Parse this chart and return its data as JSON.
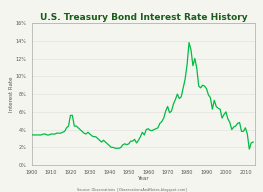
{
  "title": "U.S. Treasury Bond Interest Rate History",
  "xlabel": "Year",
  "ylabel": "Interest Rate",
  "source": "Source: Observations  [ObservationsAndNotes.blogspot.com]",
  "xlim": [
    1900,
    2015
  ],
  "ylim": [
    0,
    0.16
  ],
  "yticks": [
    0.0,
    0.02,
    0.04,
    0.06,
    0.08,
    0.1,
    0.12,
    0.14,
    0.16
  ],
  "ytick_labels": [
    "0%",
    "2%",
    "4%",
    "6%",
    "8%",
    "10%",
    "12%",
    "14%",
    "16%"
  ],
  "xticks": [
    1900,
    1910,
    1920,
    1930,
    1940,
    1950,
    1960,
    1970,
    1980,
    1990,
    2000,
    2010
  ],
  "line_color": "#00bb44",
  "bg_color": "#f5f5ef",
  "plot_bg": "#f5f5ef",
  "title_color": "#1a5c1a",
  "grid_color": "#dddddd",
  "tick_color": "#555555",
  "spine_color": "#aaaaaa",
  "years": [
    1900,
    1901,
    1902,
    1903,
    1904,
    1905,
    1906,
    1907,
    1908,
    1909,
    1910,
    1911,
    1912,
    1913,
    1914,
    1915,
    1916,
    1917,
    1918,
    1919,
    1920,
    1921,
    1922,
    1923,
    1924,
    1925,
    1926,
    1927,
    1928,
    1929,
    1930,
    1931,
    1932,
    1933,
    1934,
    1935,
    1936,
    1937,
    1938,
    1939,
    1940,
    1941,
    1942,
    1943,
    1944,
    1945,
    1946,
    1947,
    1948,
    1949,
    1950,
    1951,
    1952,
    1953,
    1954,
    1955,
    1956,
    1957,
    1958,
    1959,
    1960,
    1961,
    1962,
    1963,
    1964,
    1965,
    1966,
    1967,
    1968,
    1969,
    1970,
    1971,
    1972,
    1973,
    1974,
    1975,
    1976,
    1977,
    1978,
    1979,
    1980,
    1981,
    1982,
    1983,
    1984,
    1985,
    1986,
    1987,
    1988,
    1989,
    1990,
    1991,
    1992,
    1993,
    1994,
    1995,
    1996,
    1997,
    1998,
    1999,
    2000,
    2001,
    2002,
    2003,
    2004,
    2005,
    2006,
    2007,
    2008,
    2009,
    2010,
    2011,
    2012,
    2013,
    2014
  ],
  "rates": [
    0.034,
    0.034,
    0.034,
    0.034,
    0.034,
    0.034,
    0.035,
    0.035,
    0.034,
    0.034,
    0.035,
    0.035,
    0.035,
    0.036,
    0.036,
    0.036,
    0.037,
    0.038,
    0.042,
    0.044,
    0.056,
    0.056,
    0.044,
    0.044,
    0.042,
    0.04,
    0.038,
    0.036,
    0.035,
    0.037,
    0.035,
    0.033,
    0.032,
    0.032,
    0.03,
    0.028,
    0.026,
    0.028,
    0.026,
    0.024,
    0.022,
    0.02,
    0.02,
    0.019,
    0.019,
    0.019,
    0.02,
    0.023,
    0.024,
    0.023,
    0.024,
    0.027,
    0.027,
    0.029,
    0.025,
    0.028,
    0.032,
    0.037,
    0.034,
    0.04,
    0.041,
    0.039,
    0.039,
    0.04,
    0.041,
    0.042,
    0.047,
    0.049,
    0.053,
    0.061,
    0.066,
    0.059,
    0.061,
    0.069,
    0.074,
    0.08,
    0.075,
    0.077,
    0.087,
    0.097,
    0.113,
    0.138,
    0.13,
    0.112,
    0.12,
    0.109,
    0.089,
    0.087,
    0.09,
    0.089,
    0.086,
    0.079,
    0.076,
    0.063,
    0.073,
    0.066,
    0.064,
    0.063,
    0.053,
    0.057,
    0.06,
    0.052,
    0.048,
    0.04,
    0.043,
    0.044,
    0.047,
    0.048,
    0.038,
    0.038,
    0.042,
    0.035,
    0.018,
    0.025,
    0.026
  ]
}
